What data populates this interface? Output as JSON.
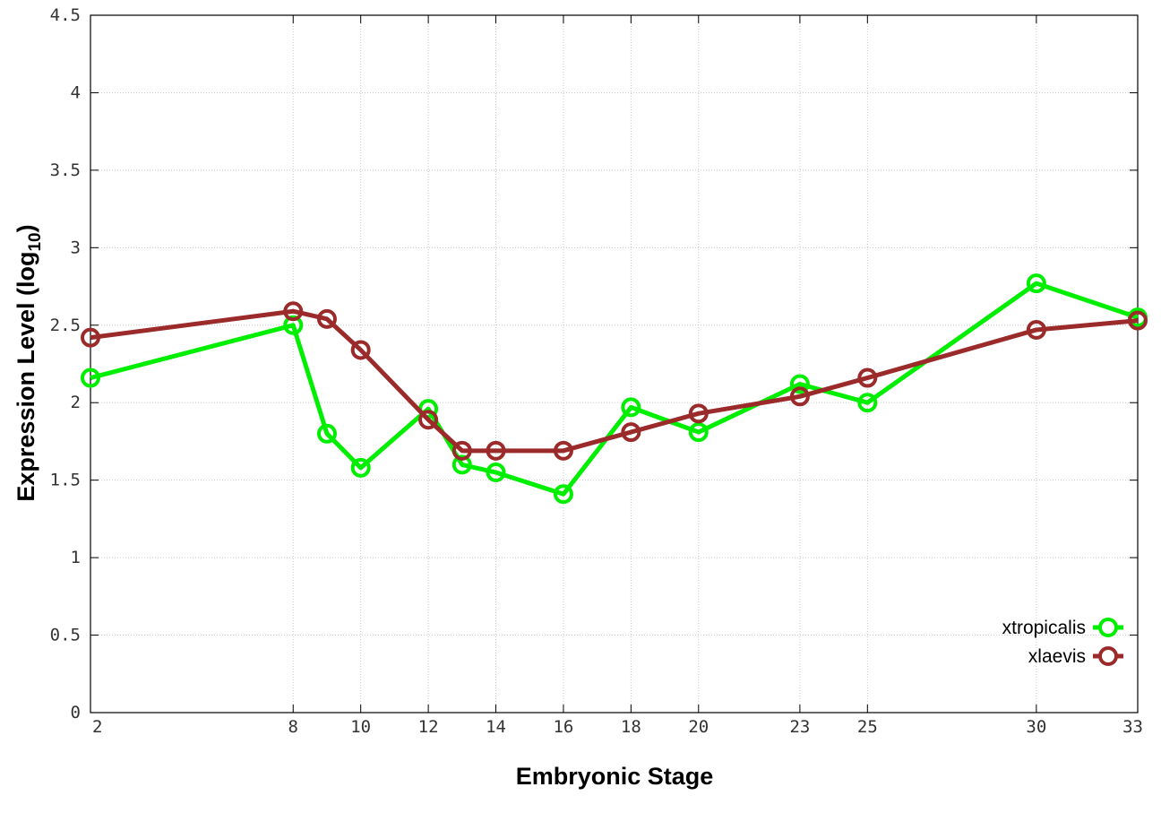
{
  "chart_data": {
    "type": "line",
    "x_ticks": [
      "2",
      "8",
      "10",
      "12",
      "14",
      "16",
      "18",
      "20",
      "23",
      "25",
      "30",
      "33"
    ],
    "y_ticks": [
      "0",
      "0.5",
      "1",
      "1.5",
      "2",
      "2.5",
      "3",
      "3.5",
      "4",
      "4.5"
    ],
    "ylim": [
      0,
      4.5
    ],
    "xlabel": "Embryonic Stage",
    "ylabel_main": "Expression Level (log",
    "ylabel_sub": "10",
    "ylabel_close": ")",
    "grid": true,
    "legend_position": "bottom-right",
    "series": [
      {
        "name": "xtropicalis",
        "color": "#00ee00",
        "x": [
          2,
          8,
          9,
          10,
          12,
          13,
          14,
          16,
          18,
          20,
          23,
          25,
          30,
          33
        ],
        "values": [
          2.16,
          2.5,
          1.8,
          1.58,
          1.96,
          1.6,
          1.55,
          1.41,
          1.97,
          1.81,
          2.12,
          2.0,
          2.77,
          2.55
        ]
      },
      {
        "name": "xlaevis",
        "color": "#9b2a2a",
        "x": [
          2,
          8,
          9,
          10,
          12,
          13,
          14,
          16,
          18,
          20,
          23,
          25,
          30,
          33
        ],
        "values": [
          2.42,
          2.59,
          2.54,
          2.34,
          1.89,
          1.69,
          1.69,
          1.69,
          1.81,
          1.93,
          2.04,
          2.16,
          2.47,
          2.53
        ]
      }
    ]
  }
}
